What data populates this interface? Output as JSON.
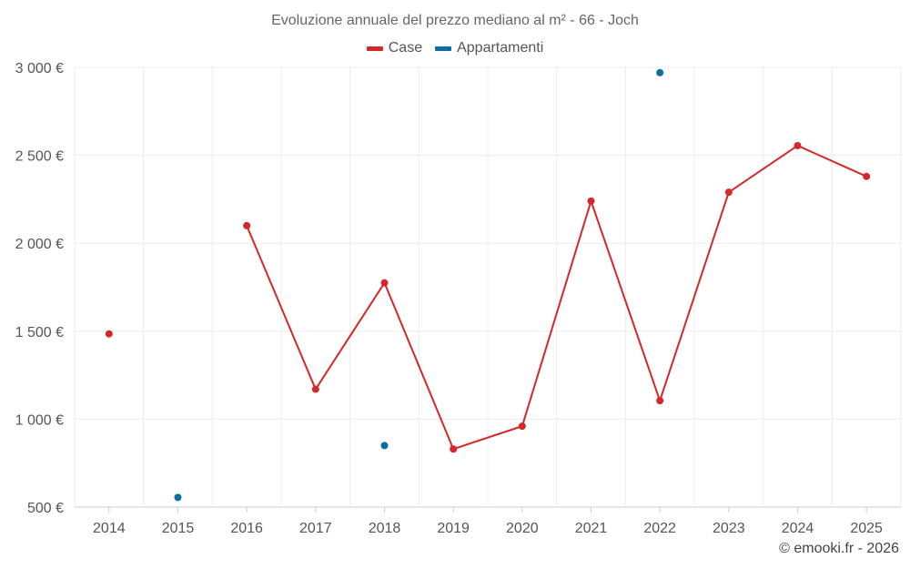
{
  "chart_data": {
    "type": "line",
    "title": "Evoluzione annuale del prezzo mediano al m² - 66 - Joch",
    "xlabel": "",
    "ylabel": "",
    "categories": [
      "2014",
      "2015",
      "2016",
      "2017",
      "2018",
      "2019",
      "2020",
      "2021",
      "2022",
      "2023",
      "2024",
      "2025"
    ],
    "ylim": [
      500,
      3000
    ],
    "yticks": [
      500,
      1000,
      1500,
      2000,
      2500,
      3000
    ],
    "ytick_labels": [
      "500 €",
      "1 000 €",
      "1 500 €",
      "2 000 €",
      "2 500 €",
      "3 000 €"
    ],
    "grid": true,
    "legend_position": "top-center",
    "series": [
      {
        "name": "Case",
        "color": "#d62728",
        "values": [
          1485,
          null,
          2100,
          1170,
          1775,
          830,
          960,
          2240,
          1105,
          2290,
          2555,
          2380
        ]
      },
      {
        "name": "Appartamenti",
        "color": "#0b6fa4",
        "values": [
          null,
          555,
          null,
          null,
          850,
          null,
          null,
          null,
          2970,
          null,
          null,
          null
        ]
      }
    ]
  },
  "credit": "© emooki.fr - 2026"
}
